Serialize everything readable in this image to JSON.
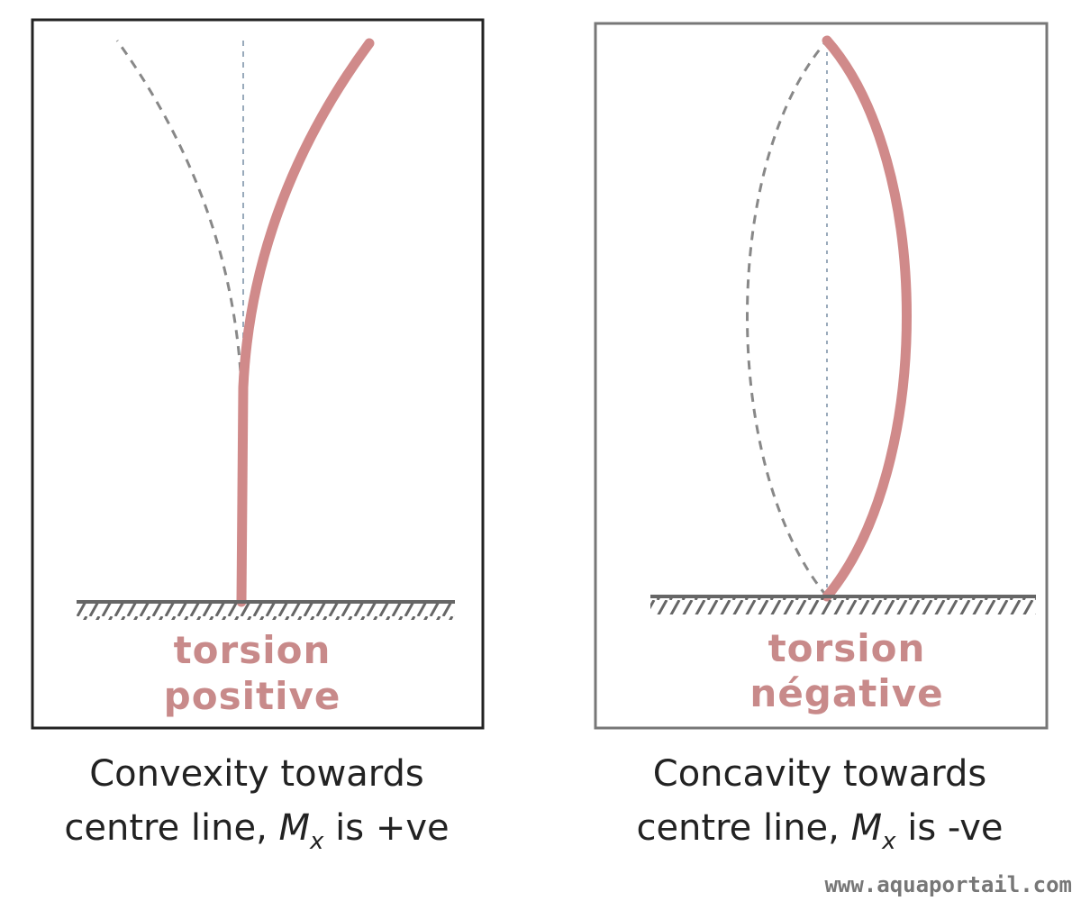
{
  "panels": [
    {
      "label": [
        "torsion",
        "positive"
      ],
      "caption": {
        "line1": "Convexity towards",
        "line2_prefix": "centre line, ",
        "symbol": "M",
        "subscript": "x",
        "line2_suffix": " is +ve"
      }
    },
    {
      "label": [
        "torsion",
        "négative"
      ],
      "caption": {
        "line1": "Concavity towards",
        "line2_prefix": "centre line, ",
        "symbol": "M",
        "subscript": "x",
        "line2_suffix": " is -ve"
      }
    }
  ],
  "watermark": "www.aquaportail.com"
}
